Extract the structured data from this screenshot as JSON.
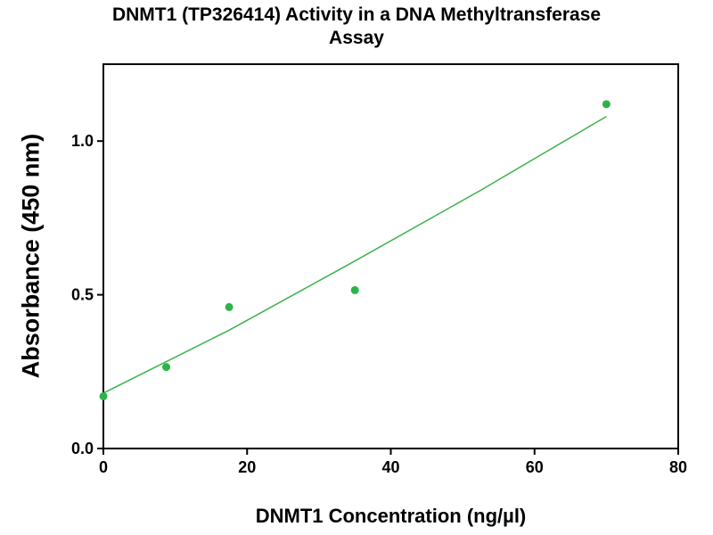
{
  "chart_data": {
    "type": "scatter",
    "title_lines": [
      "DNMT1 (TP326414) Activity in a DNA Methyltransferase",
      "Assay"
    ],
    "xlabel": "DNMT1 Concentration (ng/µl)",
    "ylabel": "Absorbance (450 nm)",
    "xlim": [
      0,
      80
    ],
    "ylim": [
      0,
      1.25
    ],
    "x_ticks": [
      0,
      20,
      40,
      60,
      80
    ],
    "x_tick_labels": [
      "0",
      "20",
      "40",
      "60",
      "80"
    ],
    "y_ticks": [
      0,
      0.5,
      1.0
    ],
    "y_tick_labels": [
      "0.0",
      "0.5",
      "1.0"
    ],
    "grid": false,
    "legend": "none",
    "point_color": "#2db34a",
    "line_color": "#3cb34a",
    "series": [
      {
        "points": [
          {
            "x": 0,
            "y": 0.17
          },
          {
            "x": 8.75,
            "y": 0.265
          },
          {
            "x": 17.5,
            "y": 0.46
          },
          {
            "x": 35,
            "y": 0.515
          },
          {
            "x": 70,
            "y": 1.12
          }
        ],
        "fit_line": [
          {
            "x": 0,
            "y": 0.18
          },
          {
            "x": 17.5,
            "y": 0.385
          },
          {
            "x": 35,
            "y": 0.61
          },
          {
            "x": 52.5,
            "y": 0.84
          },
          {
            "x": 70,
            "y": 1.08
          }
        ]
      }
    ]
  }
}
